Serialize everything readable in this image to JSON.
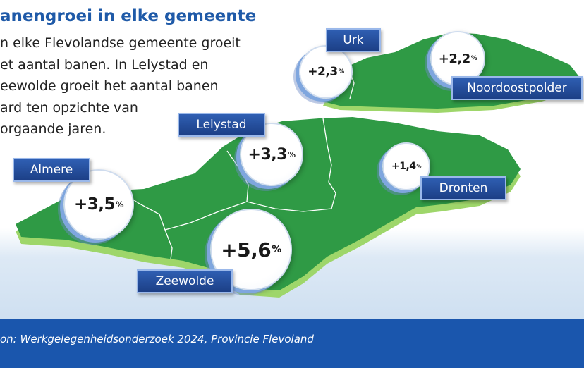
{
  "title": "anengroei in elke gemeente",
  "intro_lines": [
    "n elke Flevolandse gemeente groeit",
    "et aantal banen. In Lelystad en",
    "eewolde groeit het aantal banen",
    "ard ten opzichte van",
    "orgaande jaren."
  ],
  "municipalities": [
    {
      "name": "Urk",
      "growth": "+2,3",
      "unit": "%"
    },
    {
      "name": "Noordoostpolder",
      "growth": "+2,2",
      "unit": "%"
    },
    {
      "name": "Lelystad",
      "growth": "+3,3",
      "unit": "%"
    },
    {
      "name": "Almere",
      "growth": "+3,5",
      "unit": "%"
    },
    {
      "name": "Dronten",
      "growth": "+1,4",
      "unit": "%"
    },
    {
      "name": "Zeewolde",
      "growth": "+5,6",
      "unit": "%"
    }
  ],
  "source": "on: Werkgelegenheidsonderzoek 2024, Provincie Flevoland",
  "colors": {
    "land": "#2f9a45",
    "land_edge": "#9ed66a",
    "label_bg": "#2a59ab",
    "footer": "#1a56ad",
    "title": "#1f5aa8"
  }
}
